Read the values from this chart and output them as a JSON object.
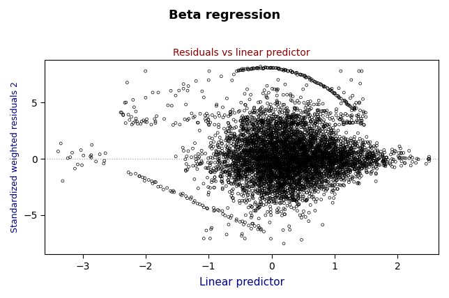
{
  "title": "Beta regression",
  "subtitle": "Residuals vs linear predictor",
  "xlabel": "Linear predictor",
  "ylabel": "Standardized weighted residuals 2",
  "title_color": "#000000",
  "subtitle_color": "#8B0000",
  "xlabel_color": "#00008B",
  "ylabel_color": "#00008B",
  "xlim": [
    -3.6,
    2.65
  ],
  "ylim": [
    -8.5,
    8.8
  ],
  "xticks": [
    -3,
    -2,
    -1,
    0,
    1,
    2
  ],
  "yticks": [
    -5,
    0,
    5
  ],
  "hline_y": 0,
  "hline_color": "#AAAAAA",
  "marker_color": "black",
  "bg_color": "#FFFFFF",
  "seed": 42
}
